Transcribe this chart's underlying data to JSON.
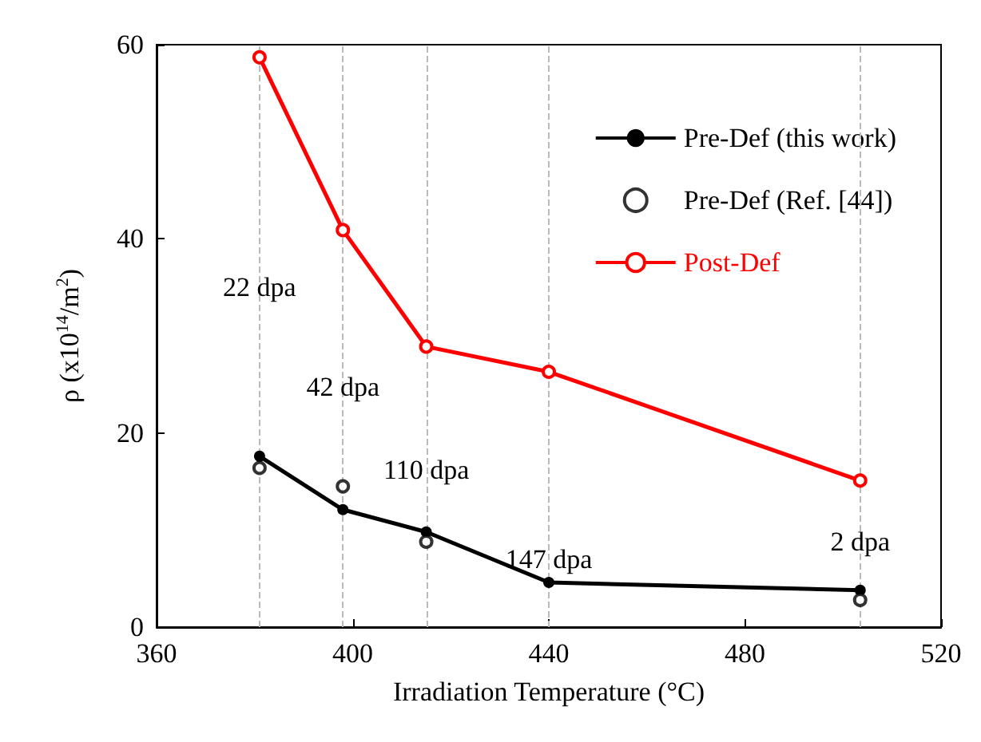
{
  "chart_data": {
    "type": "line",
    "xlabel": "Irradiation Temperature (°C)",
    "ylabel": "ρ (x10$^{14}$/m$^{2}$)",
    "x": [
      381,
      398,
      415,
      440,
      503.5
    ],
    "series": [
      {
        "name": "Pre-Def (this work)",
        "color": "#000000",
        "values": [
          17.6,
          12.1,
          9.8,
          4.6,
          3.8
        ]
      },
      {
        "name": "Pre-Def (Ref. [44])",
        "color": "#000000",
        "type": "scatter",
        "x": [
          381,
          398,
          415,
          503.5
        ],
        "values": [
          16.4,
          14.5,
          8.8,
          2.8
        ]
      },
      {
        "name": "Post-Def",
        "color": "#ff0000",
        "values": [
          58.7,
          40.9,
          28.9,
          26.3,
          15.1
        ]
      }
    ],
    "xlim": [
      360,
      520
    ],
    "xticks": [
      360,
      400,
      440,
      480,
      520
    ],
    "ylim": [
      0,
      60
    ],
    "yticks": [
      0,
      20,
      40,
      60
    ],
    "ref_lines": [
      {
        "axis": "x",
        "value": 381,
        "color": "#bbbbbb",
        "line_style": "dashed"
      },
      {
        "axis": "x",
        "value": 398,
        "color": "#bbbbbb",
        "line_style": "dashed"
      },
      {
        "axis": "x",
        "value": 415,
        "color": "#bbbbbb",
        "line_style": "dashed"
      },
      {
        "axis": "x",
        "value": 440,
        "color": "#bbbbbb",
        "line_style": "dashed"
      },
      {
        "axis": "x",
        "value": 503.5,
        "color": "#bbbbbb",
        "line_style": "dashed"
      }
    ],
    "annotations": [
      {
        "text": "22 dpa",
        "x": 381,
        "y": 35
      },
      {
        "text": "42 dpa",
        "x": 398,
        "y": 24.7
      },
      {
        "text": "110 dpa",
        "x": 415,
        "y": 16.2
      },
      {
        "text": "147 dpa",
        "x": 440,
        "y": 7
      },
      {
        "text": "2 dpa",
        "x": 503.5,
        "y": 8.8
      }
    ],
    "grid": false,
    "legend": "top right",
    "marker": "circle",
    "line_style": "solid"
  }
}
